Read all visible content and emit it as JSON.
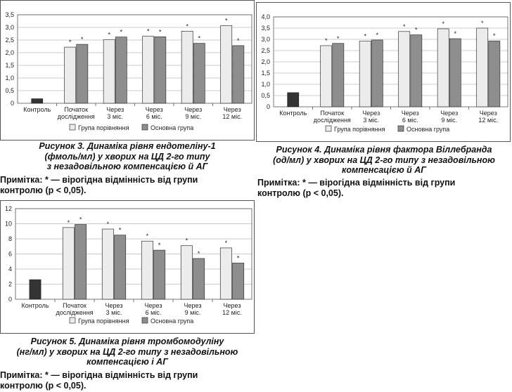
{
  "colors": {
    "comparison": "#ececec",
    "main": "#8e8e8e",
    "control": "#333333"
  },
  "note": {
    "label": "Примітка:",
    "text": " * — вірогідна відмінність від групи контролю (р < 0,05)."
  },
  "figures": [
    {
      "caption": [
        "Рисунок 3. Динаміка рівня ендотеліну-1",
        "(фмоль/мл) у хворих на ЦД 2-го типу",
        "з незадовільною компенсацією й АГ"
      ],
      "note_lines": [
        "Примітка: * — вірогідна відмінність від групи",
        "контролю (р < 0,05)."
      ]
    },
    {
      "caption": [
        "Рисунок 4. Динаміка рівня фактора Віллебранда",
        "(од/мл) у хворих на ЦД 2-го типу з незадовільною",
        "компенсацією й АГ"
      ],
      "note_lines": [
        "Примітка: * — вірогідна відмінність від групи",
        "контролю (р < 0,05)."
      ]
    },
    {
      "caption": [
        "Рисунок 5. Динаміка рівня тромбомодуліну",
        "(нг/мл) у хворих на ЦД 2-го типу з незадовільною",
        "компенсацією і АГ"
      ],
      "note_lines": [
        "Примітка: * — вірогідна відмінність від групи",
        "контролю (р < 0,05)."
      ]
    }
  ],
  "chart_data": [
    {
      "type": "bar",
      "categories": [
        [
          "Контроль"
        ],
        [
          "Початок",
          "дослідження"
        ],
        [
          "Через",
          "3 міс."
        ],
        [
          "Через",
          "6 міс."
        ],
        [
          "Через",
          "9 міс."
        ],
        [
          "Через",
          "12 міс."
        ]
      ],
      "ylim": [
        0,
        3.5
      ],
      "yticks": [
        "0",
        "0,5",
        "1,0",
        "1,5",
        "2,0",
        "2,5",
        "3,0",
        "3,5"
      ],
      "control": 0.18,
      "series": [
        {
          "name": "Група порівняння",
          "values": [
            null,
            2.22,
            2.52,
            2.65,
            2.85,
            3.07
          ]
        },
        {
          "name": "Основна група",
          "values": [
            null,
            2.33,
            2.62,
            2.63,
            2.37,
            2.28
          ]
        }
      ],
      "star_symbol": "*",
      "grid": true,
      "legend": "bottom"
    },
    {
      "type": "bar",
      "categories": [
        [
          "Контроль"
        ],
        [
          "Початок",
          "дослідження"
        ],
        [
          "Через",
          "3 міс."
        ],
        [
          "Через",
          "6 міс."
        ],
        [
          "Через",
          "9 міс."
        ],
        [
          "Через",
          "12 міс."
        ]
      ],
      "ylim": [
        0,
        4.0
      ],
      "yticks": [
        "0",
        "0,5",
        "1,0",
        "1,5",
        "2,0",
        "2,5",
        "3,0",
        "3,5",
        "4,0"
      ],
      "control": 0.63,
      "series": [
        {
          "name": "Група порівняння",
          "values": [
            null,
            2.72,
            2.92,
            3.35,
            3.47,
            3.5
          ]
        },
        {
          "name": "Основна група",
          "values": [
            null,
            2.82,
            2.97,
            3.2,
            3.03,
            2.93
          ]
        }
      ],
      "star_symbol": "*",
      "grid": true,
      "legend": "bottom"
    },
    {
      "type": "bar",
      "categories": [
        [
          "Контроль"
        ],
        [
          "Початок",
          "дослідження"
        ],
        [
          "Через",
          "3 міс."
        ],
        [
          "Через",
          "6 міс."
        ],
        [
          "Через",
          "9 міс."
        ],
        [
          "Через",
          "12 міс."
        ]
      ],
      "ylim": [
        0,
        12
      ],
      "yticks": [
        "0",
        "2",
        "4",
        "6",
        "8",
        "10",
        "12"
      ],
      "control": 2.6,
      "series": [
        {
          "name": "Група порівняння",
          "values": [
            null,
            9.5,
            9.3,
            7.7,
            7.1,
            6.8
          ]
        },
        {
          "name": "Основна група",
          "values": [
            null,
            9.9,
            8.5,
            6.5,
            5.4,
            4.8
          ]
        }
      ],
      "star_symbol": "*",
      "grid": true,
      "legend": "bottom"
    }
  ]
}
